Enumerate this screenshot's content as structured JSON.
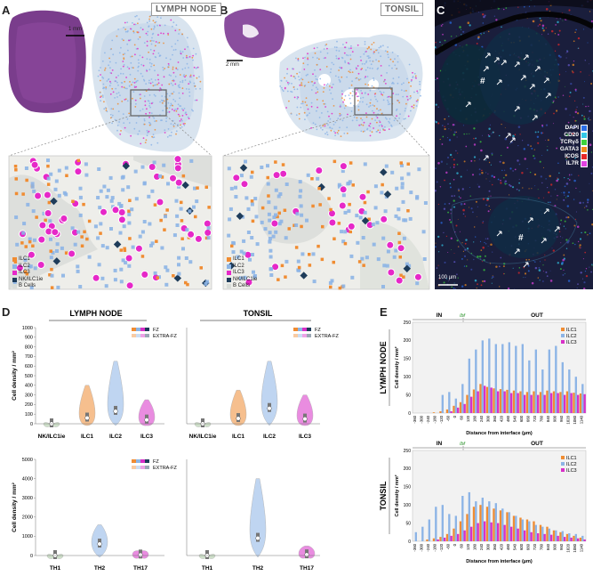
{
  "panels": {
    "A": {
      "label": "A",
      "title": "LYMPH NODE",
      "scale": "1 mm"
    },
    "B": {
      "label": "B",
      "title": "TONSIL",
      "scale": "2 mm"
    },
    "C": {
      "label": "C",
      "scale": "100 µm",
      "hash": "#",
      "channels": [
        {
          "name": "DAPI",
          "color": "#2a6ee8"
        },
        {
          "name": "CD20",
          "color": "#33c8e8"
        },
        {
          "name": "TCRγδ",
          "color": "#3cd23c"
        },
        {
          "name": "GATA3",
          "color": "#f08c1e"
        },
        {
          "name": "ICOS",
          "color": "#e82828"
        },
        {
          "name": "IL7R",
          "color": "#e040e0"
        }
      ]
    },
    "D": {
      "label": "D"
    },
    "E": {
      "label": "E"
    }
  },
  "cell_legend": [
    {
      "name": "ILC1",
      "color": "#f08c32"
    },
    {
      "name": "ILC2",
      "color": "#8cb4e6"
    },
    {
      "name": "ILC3",
      "color": "#e628c8"
    },
    {
      "name": "NK/ILC1ie",
      "color": "#1e3c5a"
    },
    {
      "name": "B Cells",
      "color": "#d8dcd8"
    }
  ],
  "colors": {
    "ilc1": "#f08c32",
    "ilc2": "#8cb4e6",
    "ilc3": "#d830c8",
    "th": "#a8c8e8"
  },
  "chart_data": [
    {
      "type": "violin",
      "title": "LYMPH NODE",
      "ylabel": "Cell density / mm²",
      "ylim": [
        0,
        1000
      ],
      "yticks": [
        "0",
        "100",
        "200",
        "300",
        "400",
        "500",
        "600",
        "700",
        "800",
        "900",
        "1000"
      ],
      "categories": [
        "NK/ILC1ie",
        "ILC1",
        "ILC2",
        "ILC3"
      ],
      "legend": [
        "FZ",
        "EXTRA-FZ"
      ],
      "medians": [
        0,
        60,
        130,
        40
      ]
    },
    {
      "type": "violin",
      "title": "TONSIL",
      "ylim": [
        0,
        1000
      ],
      "categories": [
        "NK/ILC1ie",
        "ILC1",
        "ILC2",
        "ILC3"
      ],
      "legend": [
        "FZ",
        "EXTRA-FZ"
      ],
      "medians": [
        0,
        55,
        160,
        50
      ]
    },
    {
      "type": "violin",
      "ylabel": "Cell density / mm²",
      "ylim": [
        0,
        5000
      ],
      "yticks": [
        "0",
        "1000",
        "2000",
        "3000",
        "4000",
        "5000"
      ],
      "categories": [
        "TH1",
        "TH2",
        "TH17"
      ],
      "legend": [
        "FZ",
        "EXTRA-FZ"
      ],
      "medians": [
        0,
        600,
        30
      ]
    },
    {
      "type": "violin",
      "ylim": [
        0,
        5000
      ],
      "categories": [
        "TH1",
        "TH2",
        "TH17"
      ],
      "medians": [
        0,
        900,
        40
      ]
    },
    {
      "type": "bar",
      "title": "LYMPH NODE",
      "ylabel": "Cell density / mm²",
      "xlabel": "Distance from interface (µm)",
      "ylim": [
        0,
        250
      ],
      "yticks": [
        "0",
        "50",
        "100",
        "150",
        "200",
        "250"
      ],
      "region_in": "IN",
      "region_out": "OUT",
      "interface_label": "Ibf",
      "x": [
        -360,
        -300,
        -240,
        -180,
        -120,
        -60,
        0,
        60,
        120,
        180,
        240,
        300,
        360,
        420,
        480,
        540,
        600,
        660,
        720,
        780,
        840,
        900,
        960,
        1020,
        1080,
        1140
      ],
      "series": [
        {
          "name": "ILC1",
          "values": [
            0,
            0,
            0,
            2,
            5,
            10,
            20,
            30,
            50,
            65,
            80,
            72,
            68,
            66,
            64,
            62,
            60,
            58,
            60,
            58,
            62,
            60,
            58,
            60,
            56,
            54
          ]
        },
        {
          "name": "ILC2",
          "values": [
            0,
            0,
            0,
            0,
            50,
            58,
            40,
            80,
            150,
            175,
            200,
            205,
            190,
            190,
            195,
            185,
            190,
            145,
            175,
            120,
            175,
            185,
            140,
            120,
            100,
            80
          ]
        },
        {
          "name": "ILC3",
          "values": [
            0,
            0,
            0,
            0,
            0,
            5,
            15,
            25,
            45,
            60,
            75,
            70,
            60,
            60,
            55,
            55,
            50,
            50,
            50,
            50,
            55,
            55,
            50,
            55,
            50,
            52
          ]
        }
      ]
    },
    {
      "type": "bar",
      "title": "TONSIL",
      "ylabel": "Cell density / mm²",
      "xlabel": "Distance from interface (µm)",
      "ylim": [
        0,
        250
      ],
      "yticks": [
        "0",
        "50",
        "100",
        "150",
        "200",
        "250"
      ],
      "region_in": "IN",
      "region_out": "OUT",
      "interface_label": "Ibf",
      "x": [
        -360,
        -300,
        -240,
        -180,
        -120,
        -60,
        0,
        60,
        120,
        180,
        240,
        300,
        360,
        420,
        480,
        540,
        600,
        660,
        720,
        780,
        840,
        900,
        960,
        1020,
        1080,
        1140
      ],
      "series": [
        {
          "name": "ILC1",
          "values": [
            0,
            0,
            5,
            8,
            12,
            20,
            35,
            55,
            75,
            95,
            100,
            95,
            90,
            85,
            80,
            70,
            65,
            60,
            55,
            45,
            40,
            30,
            25,
            20,
            15,
            10
          ]
        },
        {
          "name": "ILC2",
          "values": [
            25,
            40,
            60,
            95,
            100,
            75,
            70,
            125,
            135,
            110,
            120,
            110,
            105,
            90,
            80,
            70,
            60,
            55,
            45,
            40,
            35,
            30,
            28,
            22,
            20,
            15
          ]
        },
        {
          "name": "ILC3",
          "values": [
            0,
            0,
            0,
            5,
            10,
            15,
            20,
            30,
            40,
            50,
            55,
            52,
            50,
            45,
            40,
            35,
            30,
            25,
            22,
            20,
            18,
            15,
            12,
            10,
            8,
            5
          ]
        }
      ]
    }
  ],
  "xticks_e": [
    "-360",
    "-300",
    "-240",
    "-180",
    "-120",
    "-60",
    "0",
    "60",
    "120",
    "180",
    "240",
    "300",
    "360",
    "420",
    "480",
    "540",
    "600",
    "660",
    "720",
    "780",
    "840",
    "900",
    "960",
    "1020",
    "1080",
    "1140"
  ]
}
